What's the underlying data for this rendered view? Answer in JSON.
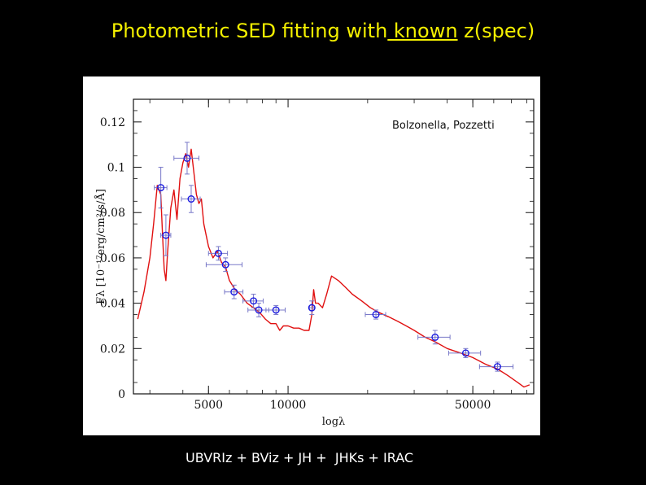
{
  "slide": {
    "title_pre": "Photometric SED fitting with",
    "title_underlined": " known",
    "title_post": " z(spec)",
    "caption": "UBVRIz + BViz + JH +  JHKs + IRAC"
  },
  "chart_data": {
    "type": "scatter",
    "title": "",
    "xlabel": "logλ",
    "ylabel": "Fλ [10⁻¹⁷erg/cm²/s/Å]",
    "annotation": "Bolzonella, Pozzetti",
    "x_scale": "log",
    "xlim": [
      2600,
      85000
    ],
    "ylim": [
      0,
      0.13
    ],
    "x_ticks": [
      5000,
      10000,
      50000
    ],
    "x_tick_labels": [
      "5000",
      "10000",
      "50000"
    ],
    "y_ticks": [
      0,
      0.02,
      0.04,
      0.06,
      0.08,
      0.1,
      0.12
    ],
    "y_tick_labels": [
      "0",
      "0.02",
      "0.04",
      "0.06",
      "0.08",
      "0.1",
      "0.12"
    ],
    "colors": {
      "model": "#e01010",
      "photometry": "#1a1ae0",
      "errorbars": "#7878c8"
    },
    "series": [
      {
        "kind": "line",
        "x": [
          2700,
          2850,
          3000,
          3100,
          3200,
          3300,
          3350,
          3400,
          3450,
          3500,
          3600,
          3700,
          3800,
          3900,
          4000,
          4100,
          4200,
          4300,
          4400,
          4500,
          4600,
          4700,
          4800,
          5000,
          5200,
          5400,
          5600,
          5800,
          6000,
          6300,
          6600,
          7000,
          7400,
          7800,
          8200,
          8600,
          9000,
          9300,
          9600,
          10000,
          10500,
          11000,
          11500,
          12000,
          12300,
          12500,
          12700,
          13000,
          13500,
          14000,
          14600,
          15500,
          16500,
          17500,
          19000,
          20500,
          22000,
          24000,
          26000,
          28000,
          30000,
          33000,
          36000,
          40000,
          45000,
          50000,
          56000,
          62000,
          68000,
          74000,
          78000,
          82000
        ],
        "y": [
          0.033,
          0.045,
          0.06,
          0.075,
          0.092,
          0.088,
          0.07,
          0.055,
          0.05,
          0.062,
          0.082,
          0.09,
          0.077,
          0.095,
          0.102,
          0.106,
          0.1,
          0.108,
          0.098,
          0.088,
          0.084,
          0.086,
          0.075,
          0.065,
          0.06,
          0.063,
          0.058,
          0.056,
          0.05,
          0.046,
          0.044,
          0.04,
          0.038,
          0.036,
          0.033,
          0.031,
          0.031,
          0.028,
          0.03,
          0.03,
          0.029,
          0.029,
          0.028,
          0.028,
          0.035,
          0.046,
          0.04,
          0.04,
          0.038,
          0.044,
          0.052,
          0.05,
          0.047,
          0.044,
          0.041,
          0.038,
          0.036,
          0.034,
          0.032,
          0.03,
          0.028,
          0.025,
          0.023,
          0.02,
          0.018,
          0.016,
          0.013,
          0.011,
          0.008,
          0.005,
          0.003,
          0.004
        ]
      },
      {
        "kind": "points",
        "x": [
          3300,
          3450,
          4150,
          4300,
          5450,
          5800,
          6250,
          7400,
          7750,
          9000,
          12300,
          21500,
          36000,
          47000,
          62000
        ],
        "y": [
          0.091,
          0.07,
          0.104,
          0.086,
          0.062,
          0.057,
          0.045,
          0.041,
          0.037,
          0.037,
          0.038,
          0.035,
          0.025,
          0.018,
          0.012
        ],
        "x_err": [
          180,
          150,
          450,
          350,
          450,
          900,
          500,
          650,
          700,
          750,
          250,
          1900,
          5000,
          6500,
          9000
        ],
        "y_err": [
          0.009,
          0.009,
          0.007,
          0.006,
          0.003,
          0.003,
          0.003,
          0.003,
          0.003,
          0.002,
          0.003,
          0.002,
          0.003,
          0.002,
          0.002
        ]
      }
    ]
  }
}
